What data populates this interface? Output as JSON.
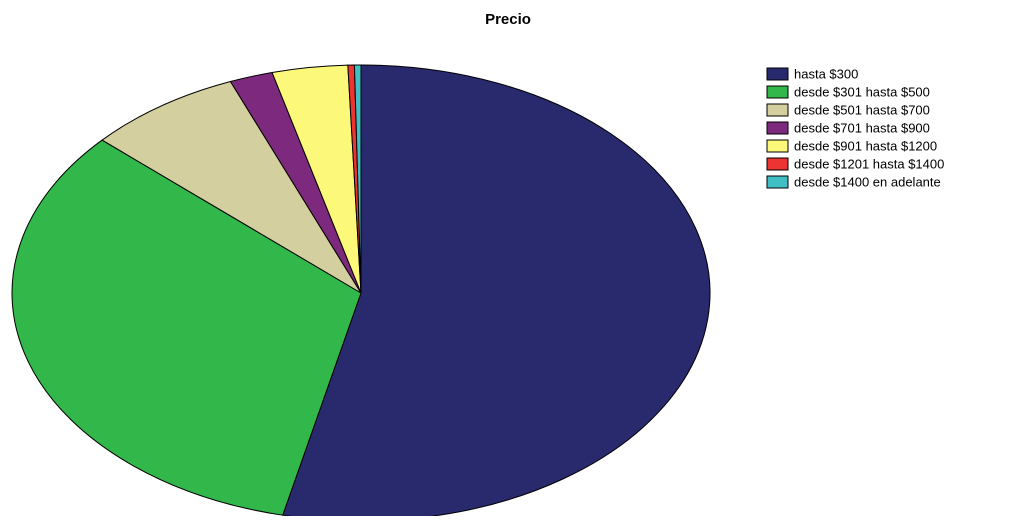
{
  "chart_data": {
    "type": "pie",
    "title": "Precio",
    "categories": [
      "hasta $300",
      "desde $301 hasta $500",
      "desde $501 hasta $700",
      "desde $701 hasta $900",
      "desde $901 hasta $1200",
      "desde $1201 hasta $1400",
      "desde $1400 en adelante"
    ],
    "values": [
      53.6,
      33.1,
      7.2,
      2.0,
      3.5,
      0.3,
      0.3
    ],
    "colors": [
      "#292a6e",
      "#31b74a",
      "#d4cf9e",
      "#7d2a7e",
      "#fbf87a",
      "#ee3333",
      "#3fbfc4"
    ],
    "legend": "top-right"
  }
}
